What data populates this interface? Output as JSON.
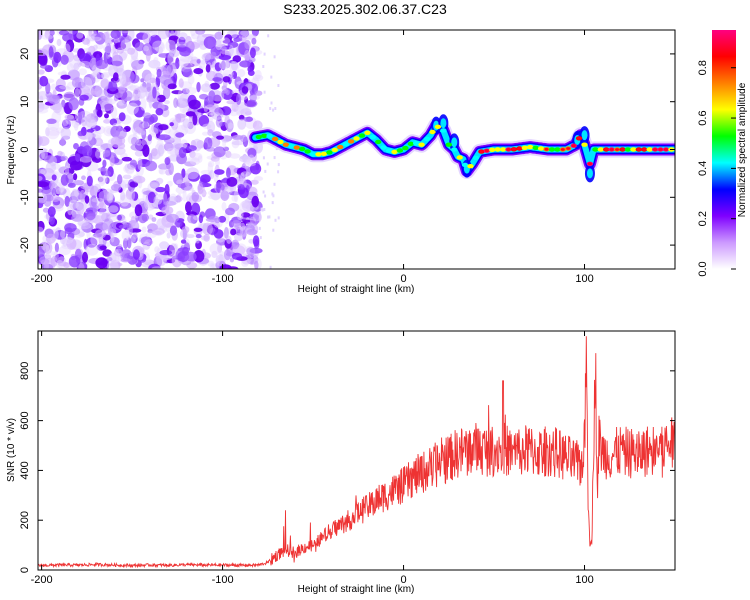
{
  "title": "S233.2025.302.06.37.C23",
  "chart_data": [
    {
      "type": "heatmap",
      "name": "spectrogram",
      "xlabel": "Height of straight line (km)",
      "ylabel": "Frequency (Hz)",
      "xlim": [
        -202,
        150
      ],
      "ylim": [
        -25,
        25
      ],
      "x_ticks": [
        -200,
        -100,
        0,
        100
      ],
      "x_tick_labels": [
        "-200",
        "-100",
        "0",
        "100"
      ],
      "y_ticks": [
        -20,
        -10,
        0,
        10,
        20
      ],
      "y_tick_labels": [
        "-20",
        "-10",
        "0",
        "10",
        "20"
      ],
      "noise_region_x": [
        -202,
        -80
      ],
      "ridge_start_x": -82,
      "ridge": {
        "x": [
          -82,
          -75,
          -70,
          -65,
          -60,
          -55,
          -50,
          -45,
          -40,
          -35,
          -30,
          -25,
          -20,
          -15,
          -10,
          -5,
          0,
          5,
          10,
          15,
          18,
          22,
          25,
          28,
          30,
          33,
          35,
          38,
          42,
          50,
          60,
          70,
          80,
          90,
          95,
          98,
          100,
          103,
          105,
          110,
          120,
          130,
          140,
          150
        ],
        "y": [
          2.5,
          3,
          2,
          1,
          0.5,
          0,
          -1,
          -1,
          -0.5,
          0.5,
          1.5,
          2.5,
          3.5,
          2,
          0,
          -0.5,
          0,
          1.5,
          1,
          3,
          5,
          4,
          1,
          0,
          -1.5,
          -2,
          -4.5,
          -3,
          -0.5,
          0,
          0,
          0.5,
          0,
          0,
          1,
          3,
          1,
          -3,
          0,
          0,
          0,
          0,
          0,
          0
        ]
      },
      "colorbar": {
        "label": "Normalized spectral amplitude",
        "range": [
          0.0,
          0.95
        ],
        "ticks": [
          0.0,
          0.2,
          0.4,
          0.6,
          0.8
        ],
        "tick_labels": [
          "0.0",
          "0.2",
          "0.4",
          "0.6",
          "0.8"
        ],
        "colors": [
          "#ffffff",
          "#cc99ff",
          "#7f00ff",
          "#0000ff",
          "#00ffff",
          "#00ff00",
          "#ffff00",
          "#ff7f00",
          "#ff0000",
          "#ff0080"
        ]
      }
    },
    {
      "type": "line",
      "name": "snr",
      "xlabel": "Height of straight line (km)",
      "ylabel": "SNR (10 * v/v)",
      "xlim": [
        -202,
        150
      ],
      "ylim": [
        0,
        960
      ],
      "x_ticks": [
        -200,
        -100,
        0,
        100
      ],
      "x_tick_labels": [
        "-200",
        "-100",
        "0",
        "100"
      ],
      "y_ticks": [
        0,
        200,
        400,
        600,
        800
      ],
      "y_tick_labels": [
        "0",
        "200",
        "400",
        "600",
        "800"
      ],
      "color": "#ee3333",
      "series": [
        {
          "name": "SNR",
          "x": [
            -202,
            -190,
            -180,
            -170,
            -160,
            -150,
            -140,
            -130,
            -120,
            -110,
            -100,
            -90,
            -80,
            -75,
            -70,
            -65,
            -60,
            -55,
            -50,
            -45,
            -40,
            -35,
            -30,
            -25,
            -20,
            -15,
            -10,
            -5,
            0,
            5,
            10,
            15,
            20,
            25,
            30,
            35,
            40,
            45,
            50,
            55,
            60,
            65,
            70,
            75,
            80,
            85,
            90,
            95,
            98,
            100,
            101,
            102,
            103,
            104,
            105,
            106,
            107,
            108,
            110,
            115,
            120,
            125,
            130,
            135,
            140,
            145,
            150
          ],
          "y": [
            18,
            20,
            20,
            22,
            20,
            18,
            20,
            19,
            21,
            20,
            20,
            19,
            20,
            30,
            60,
            80,
            70,
            90,
            100,
            130,
            160,
            180,
            200,
            230,
            250,
            280,
            300,
            320,
            340,
            370,
            390,
            410,
            430,
            450,
            470,
            480,
            490,
            480,
            480,
            490,
            470,
            480,
            480,
            470,
            480,
            470,
            450,
            430,
            420,
            500,
            900,
            300,
            120,
            100,
            500,
            880,
            300,
            520,
            470,
            460,
            480,
            470,
            470,
            480,
            490,
            500,
            510
          ]
        }
      ]
    }
  ]
}
